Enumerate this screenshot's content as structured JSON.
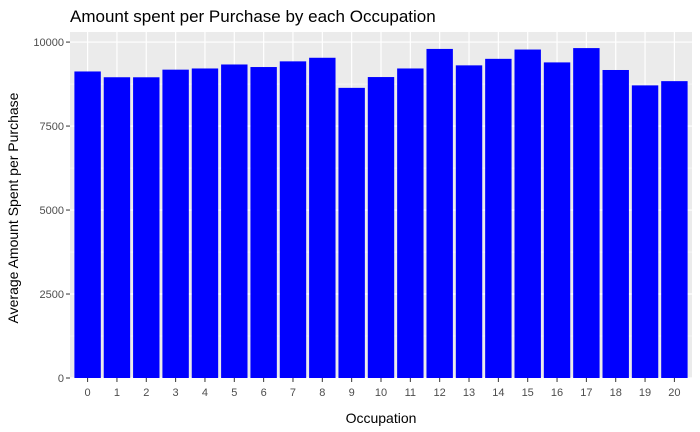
{
  "colors": {
    "panel_background": "#ebebeb",
    "grid_major": "#ffffff",
    "bar_fill": "#0000ff",
    "tick_color": "#333333",
    "tick_label_color": "#4d4d4d"
  },
  "chart_data": {
    "type": "bar",
    "title": "Amount spent per Purchase by each Occupation",
    "xlabel": "Occupation",
    "ylabel": "Average Amount Spent per Purchase",
    "categories": [
      "0",
      "1",
      "2",
      "3",
      "4",
      "5",
      "6",
      "7",
      "8",
      "9",
      "10",
      "11",
      "12",
      "13",
      "14",
      "15",
      "16",
      "17",
      "18",
      "19",
      "20"
    ],
    "values": [
      9125,
      8953,
      8952,
      9179,
      9214,
      9333,
      9257,
      9426,
      9533,
      8637,
      8959,
      9214,
      9796,
      9307,
      9501,
      9778,
      9395,
      9821,
      9169,
      8711,
      8837
    ],
    "yticks": [
      0,
      2500,
      5000,
      7500,
      10000
    ],
    "ytick_labels": [
      "0",
      "2500",
      "5000",
      "7500",
      "10000"
    ],
    "ylim": [
      0,
      10300
    ],
    "grid": true,
    "legend": "none"
  }
}
